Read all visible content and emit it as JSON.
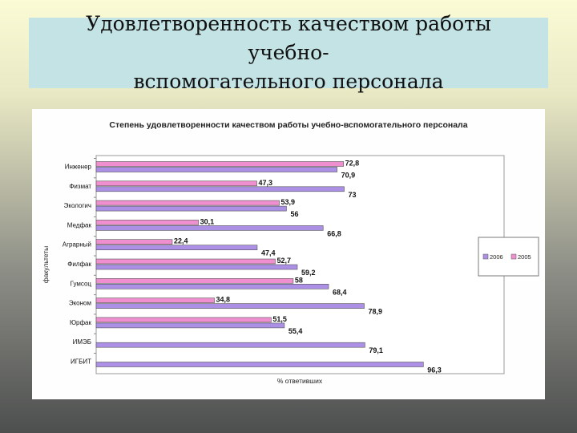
{
  "slide": {
    "title": "Удовлетворенность качеством работы учебно-\nвспомогательного персонала"
  },
  "colors": {
    "s2005": "#f08fcf",
    "s2006": "#ab90e6",
    "plot_bg": "#ffffff",
    "chart_bg": "#fefefe"
  },
  "chart_data": {
    "type": "bar",
    "orientation": "horizontal",
    "title": "Степень удовлетворенности качеством работы учебно-вспомогательного персонала",
    "xlabel": "% ответивших",
    "ylabel": "факультеты",
    "categories": [
      "Инженер",
      "Физмат",
      "Экологич",
      "Медфак",
      "Аграрный",
      "Филфак",
      "Гумсоц",
      "Эконом",
      "Юрфак",
      "ИМЭБ",
      "ИГБИТ"
    ],
    "series": [
      {
        "name": "2006",
        "color": "#ab90e6",
        "values": [
          70.9,
          73,
          56,
          66.8,
          47.4,
          59.2,
          68.4,
          78.9,
          55.4,
          79.1,
          96.3
        ],
        "labels": [
          "70,9",
          "73",
          "56",
          "66,8",
          "47,4",
          "59,2",
          "68,4",
          "78,9",
          "55,4",
          "79,1",
          "96,3"
        ]
      },
      {
        "name": "2005",
        "color": "#f08fcf",
        "values": [
          72.8,
          47.3,
          53.9,
          30.1,
          22.4,
          52.7,
          58,
          34.8,
          51.5,
          null,
          null
        ],
        "labels": [
          "72,8",
          "47,3",
          "53,9",
          "30,1",
          "22,4",
          "52,7",
          "58",
          "34,8",
          "51,5",
          "",
          ""
        ]
      }
    ],
    "legend_placement": "right",
    "grid": false
  }
}
